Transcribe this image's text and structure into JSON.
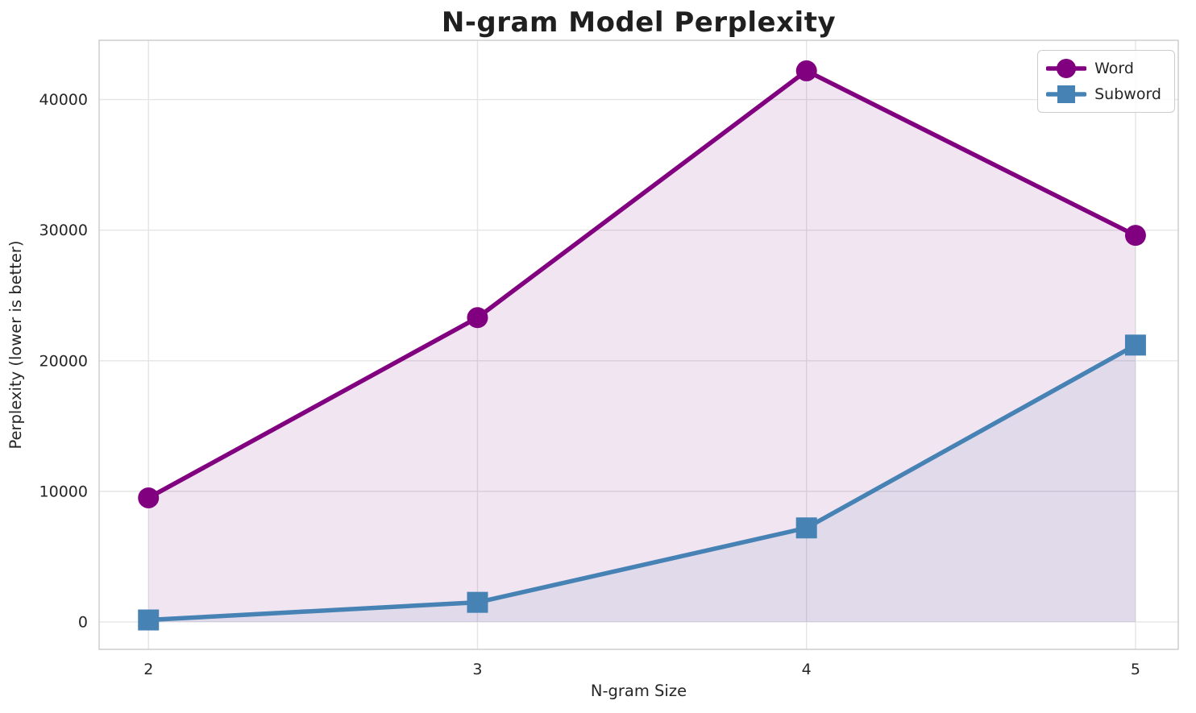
{
  "chart_data": {
    "type": "line",
    "title": "N-gram Model Perplexity",
    "xlabel": "N-gram Size",
    "ylabel": "Perplexity (lower is better)",
    "x": [
      2,
      3,
      4,
      5
    ],
    "x_tick_labels": [
      "2",
      "3",
      "4",
      "5"
    ],
    "y_ticks": [
      0,
      10000,
      20000,
      30000,
      40000
    ],
    "y_tick_labels": [
      "0",
      "10000",
      "20000",
      "30000",
      "40000"
    ],
    "xlim": [
      1.85,
      5.13
    ],
    "ylim": [
      -2100,
      44540
    ],
    "grid": true,
    "legend_position": "upper right",
    "fill_to_zero": true,
    "series": [
      {
        "name": "Word",
        "marker": "circle",
        "color": "#800080",
        "fill_alpha": 0.1,
        "values": [
          9500,
          23300,
          42200,
          29600
        ]
      },
      {
        "name": "Subword",
        "marker": "square",
        "color": "#4682B4",
        "fill_alpha": 0.1,
        "values": [
          150,
          1500,
          7200,
          21200
        ]
      }
    ],
    "colors": {
      "grid": "#E5E5E5",
      "spine": "#C6C6C6",
      "tick_text": "#262626",
      "background": "#FFFFFF"
    }
  }
}
